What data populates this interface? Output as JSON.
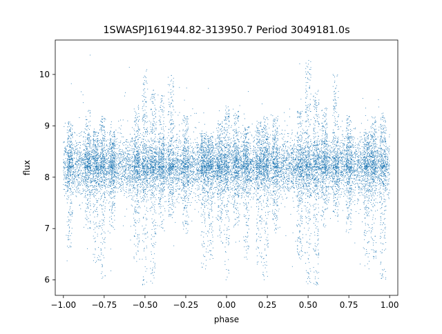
{
  "chart_data": {
    "type": "scatter",
    "title": "1SWASPJ161944.82-313950.7 Period 3049181.0s",
    "xlabel": "phase",
    "ylabel": "flux",
    "xlim": [
      -1.05,
      1.05
    ],
    "ylim": [
      5.7,
      10.67
    ],
    "xticks": [
      -1.0,
      -0.75,
      -0.5,
      -0.25,
      0.0,
      0.25,
      0.5,
      0.75,
      1.0
    ],
    "xtick_labels": [
      "−1.00",
      "−0.75",
      "−0.50",
      "−0.25",
      "0.00",
      "0.25",
      "0.50",
      "0.75",
      "1.00"
    ],
    "yticks": [
      6,
      7,
      8,
      9,
      10
    ],
    "ytick_labels": [
      "6",
      "7",
      "8",
      "9",
      "10"
    ],
    "grid": false,
    "color": "#1f77b4",
    "series": [
      {
        "description_of_distribution": "dense band of points centred near 8.2 spanning phase -1 to 1, with vertical streaks of points reaching up to ~10.3 and down to ~5.9",
        "baseline_flux": 8.2,
        "scatter_sigma": 0.28,
        "n_points": 9000,
        "streaks": [
          {
            "phase": -0.96,
            "low": 6.6,
            "high": 9.1
          },
          {
            "phase": -0.85,
            "low": 7.0,
            "high": 9.3
          },
          {
            "phase": -0.8,
            "low": 6.3,
            "high": 8.9
          },
          {
            "phase": -0.76,
            "low": 6.0,
            "high": 9.2
          },
          {
            "phase": -0.7,
            "low": 6.9,
            "high": 8.9
          },
          {
            "phase": -0.55,
            "low": 6.4,
            "high": 9.4
          },
          {
            "phase": -0.5,
            "low": 5.9,
            "high": 10.1
          },
          {
            "phase": -0.45,
            "low": 5.9,
            "high": 9.7
          },
          {
            "phase": -0.4,
            "low": 7.0,
            "high": 9.6
          },
          {
            "phase": -0.34,
            "low": 7.2,
            "high": 10.0
          },
          {
            "phase": -0.25,
            "low": 6.9,
            "high": 9.2
          },
          {
            "phase": -0.14,
            "low": 6.2,
            "high": 8.9
          },
          {
            "phase": -0.1,
            "low": 6.4,
            "high": 8.8
          },
          {
            "phase": -0.04,
            "low": 6.7,
            "high": 9.1
          },
          {
            "phase": 0.0,
            "low": 6.0,
            "high": 9.4
          },
          {
            "phase": 0.06,
            "low": 7.0,
            "high": 9.3
          },
          {
            "phase": 0.12,
            "low": 6.4,
            "high": 9.0
          },
          {
            "phase": 0.2,
            "low": 6.3,
            "high": 9.1
          },
          {
            "phase": 0.24,
            "low": 6.0,
            "high": 9.2
          },
          {
            "phase": 0.3,
            "low": 6.9,
            "high": 9.2
          },
          {
            "phase": 0.45,
            "low": 6.4,
            "high": 9.3
          },
          {
            "phase": 0.5,
            "low": 5.9,
            "high": 10.3
          },
          {
            "phase": 0.55,
            "low": 5.9,
            "high": 9.7
          },
          {
            "phase": 0.6,
            "low": 7.0,
            "high": 9.4
          },
          {
            "phase": 0.67,
            "low": 7.2,
            "high": 10.0
          },
          {
            "phase": 0.75,
            "low": 6.9,
            "high": 9.2
          },
          {
            "phase": 0.86,
            "low": 6.2,
            "high": 8.9
          },
          {
            "phase": 0.9,
            "low": 6.4,
            "high": 9.2
          },
          {
            "phase": 0.96,
            "low": 6.0,
            "high": 9.2
          }
        ]
      }
    ]
  }
}
